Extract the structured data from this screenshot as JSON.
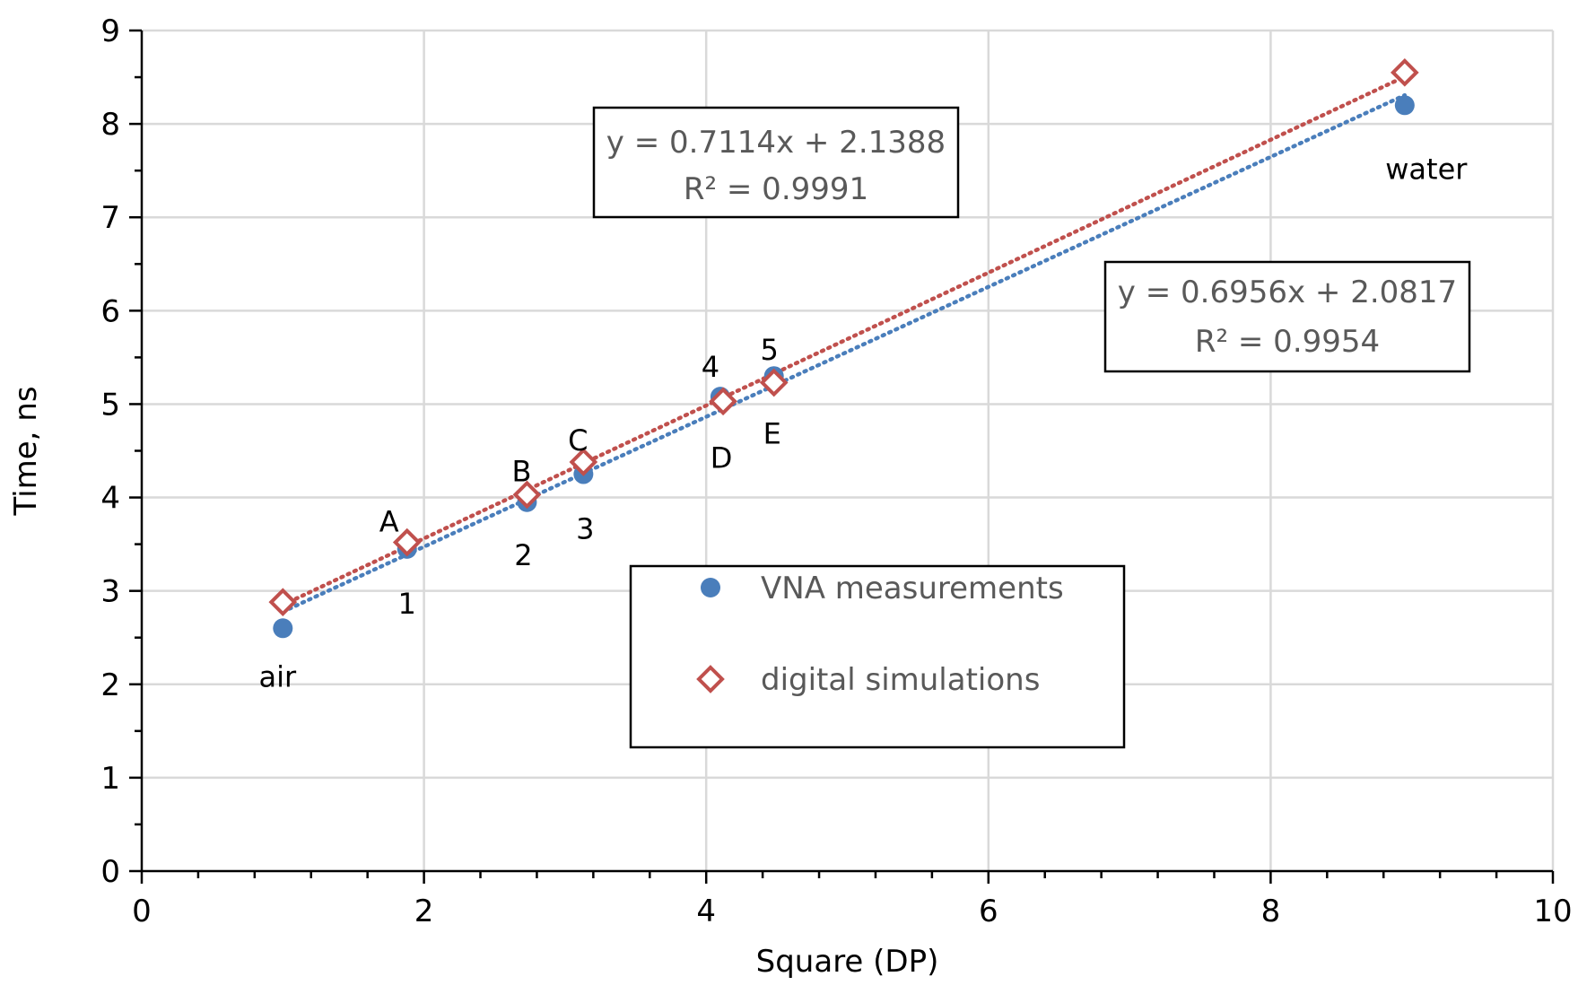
{
  "chart_data": {
    "type": "scatter",
    "title": "",
    "xlabel": "Square (DP)",
    "ylabel": "Time, ns",
    "xlim": [
      0,
      10
    ],
    "ylim": [
      0,
      9
    ],
    "x_ticks": [
      0,
      2,
      4,
      6,
      8,
      10
    ],
    "y_ticks": [
      0,
      1,
      2,
      3,
      4,
      5,
      6,
      7,
      8,
      9
    ],
    "grid": true,
    "legend_position": "center-bottom",
    "series": [
      {
        "name": "VNA measurements",
        "marker": "filled-circle",
        "color": "#4a7ebb",
        "points": [
          {
            "x": 1.0,
            "y": 2.6,
            "label": "air"
          },
          {
            "x": 1.88,
            "y": 3.45,
            "label": "1"
          },
          {
            "x": 2.73,
            "y": 3.95,
            "label": "2"
          },
          {
            "x": 3.13,
            "y": 4.25,
            "label": "3"
          },
          {
            "x": 4.1,
            "y": 5.08,
            "label": "4"
          },
          {
            "x": 4.48,
            "y": 5.3,
            "label": "5"
          },
          {
            "x": 8.95,
            "y": 8.2,
            "label": "water"
          }
        ],
        "trendline": {
          "slope": 0.6956,
          "intercept": 2.0817,
          "x_range": [
            1.0,
            8.95
          ],
          "equation": "y = 0.6956x + 2.0817",
          "r2": "R² = 0.9954"
        }
      },
      {
        "name": "digital simulations",
        "marker": "open-diamond",
        "color": "#c0504d",
        "points": [
          {
            "x": 1.0,
            "y": 2.88,
            "label": ""
          },
          {
            "x": 1.88,
            "y": 3.52,
            "label": "A"
          },
          {
            "x": 2.73,
            "y": 4.03,
            "label": "B"
          },
          {
            "x": 3.13,
            "y": 4.38,
            "label": "C"
          },
          {
            "x": 4.12,
            "y": 5.03,
            "label": "D"
          },
          {
            "x": 4.48,
            "y": 5.23,
            "label": "E"
          },
          {
            "x": 8.95,
            "y": 8.55,
            "label": ""
          }
        ],
        "trendline": {
          "slope": 0.7114,
          "intercept": 2.1388,
          "x_range": [
            1.0,
            8.95
          ],
          "equation": "y = 0.7114x + 2.1388",
          "r2": "R² = 0.9991"
        }
      }
    ]
  }
}
